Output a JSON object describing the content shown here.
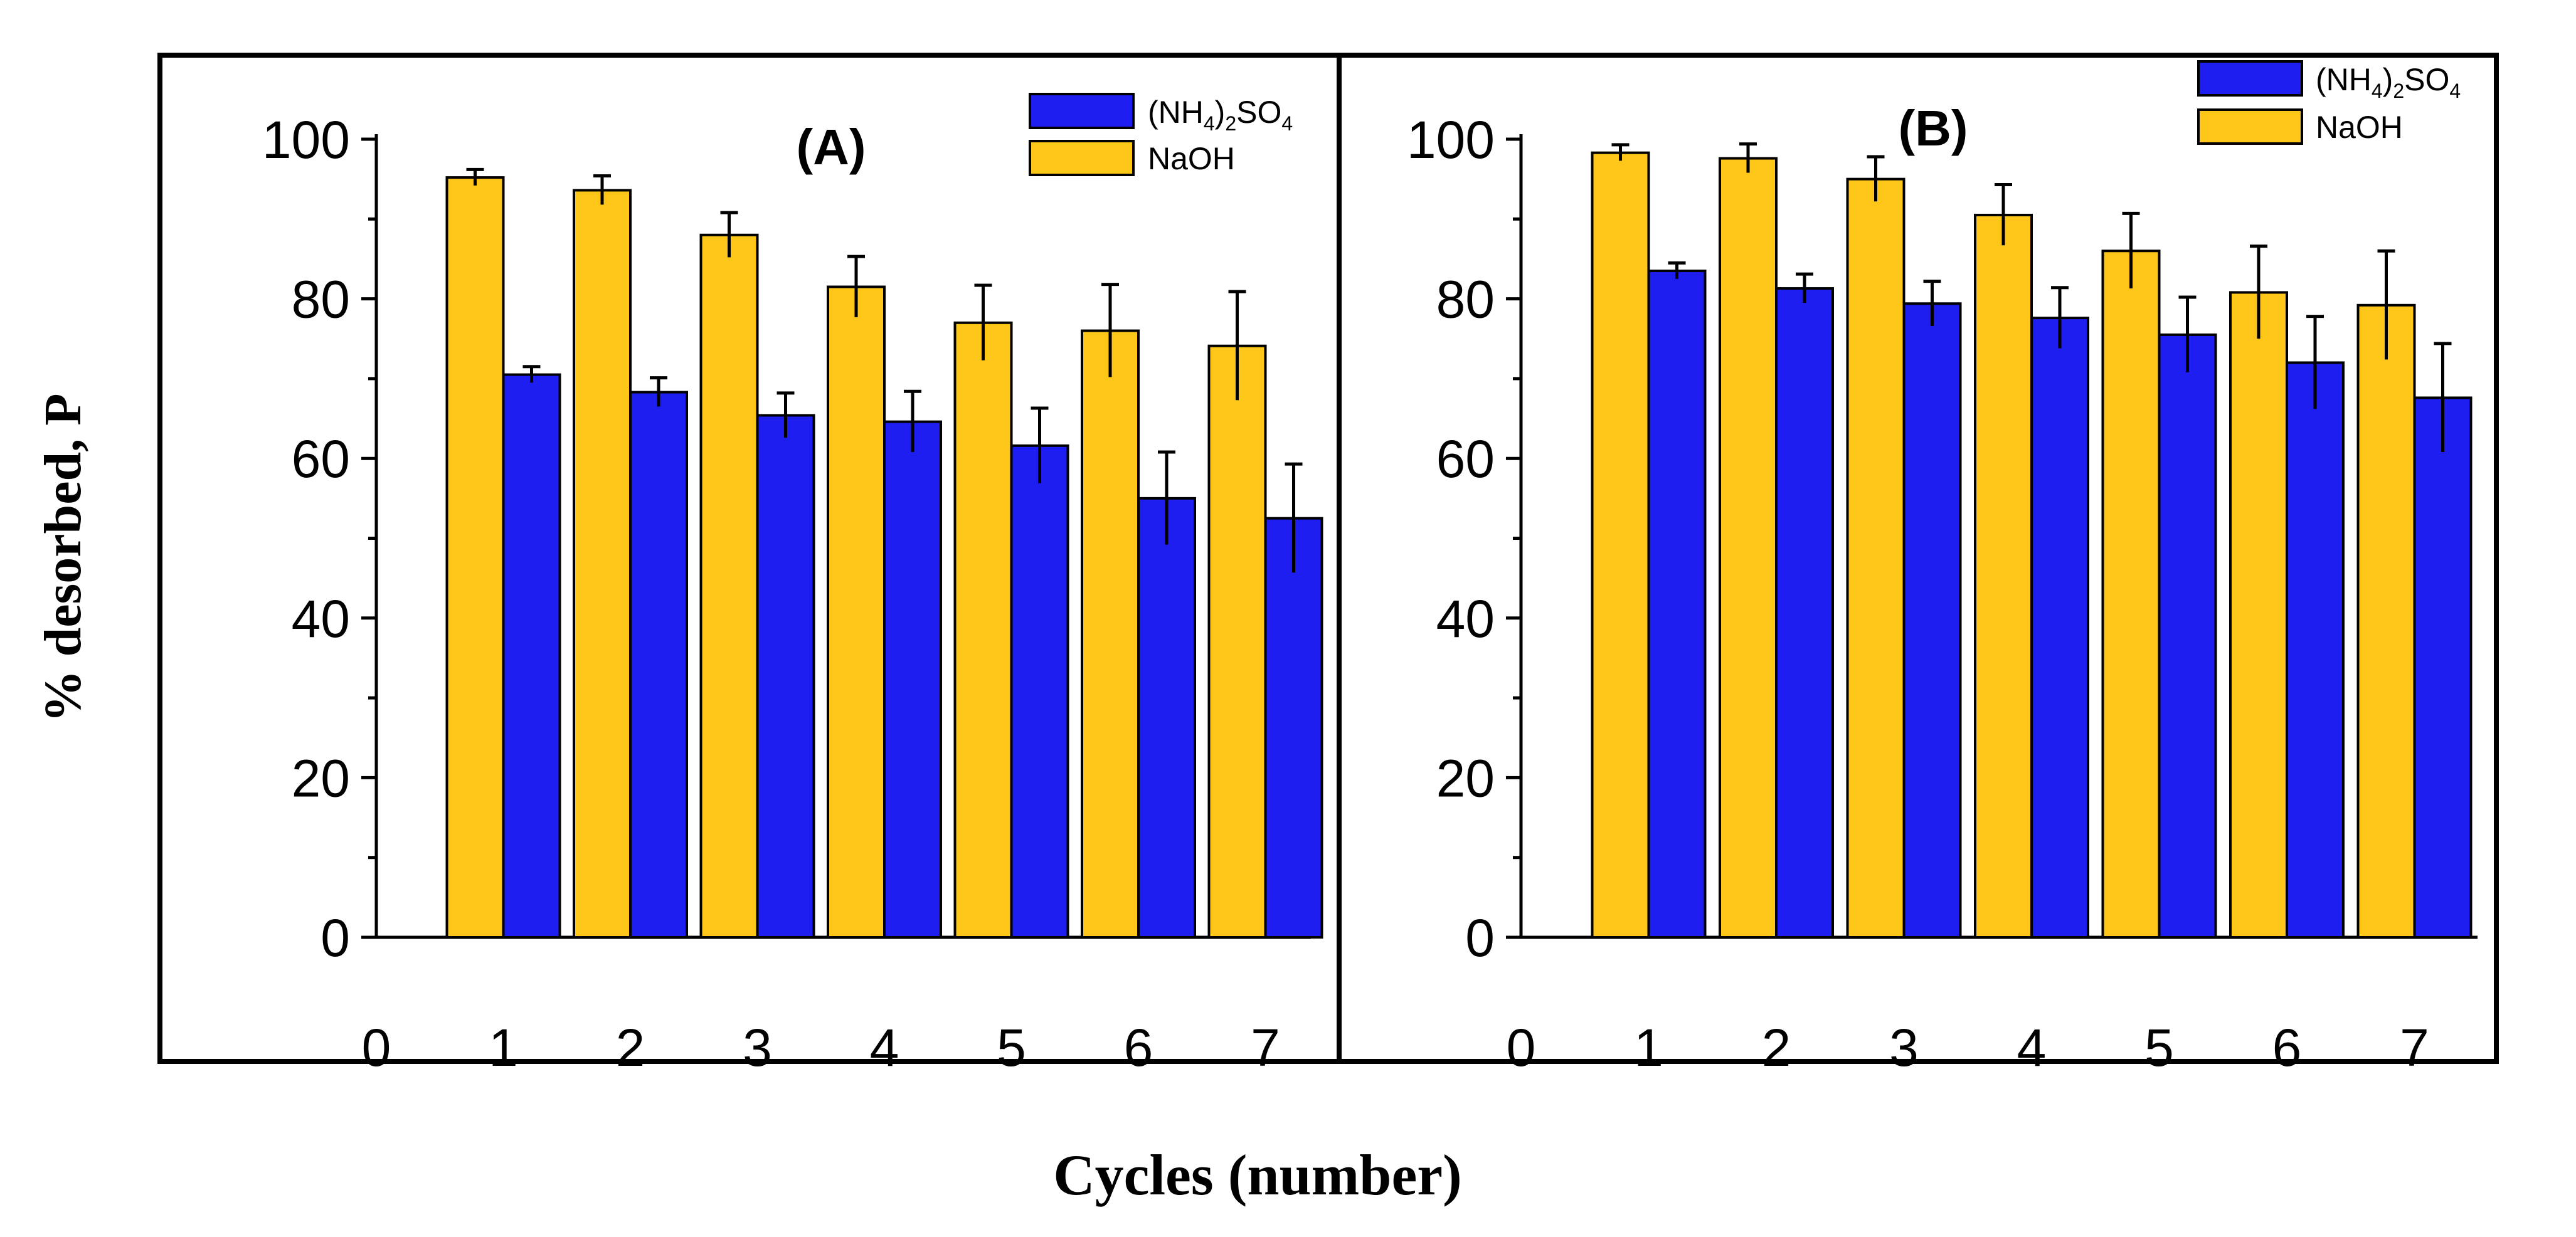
{
  "figure": {
    "ylabel": "% desorbed,  P",
    "xlabel": "Cycles (number)"
  },
  "colors": {
    "NaOH": "#FFC61A",
    "ammonium_sulfate": "#1E1EF0",
    "axis": "#000000"
  },
  "chart_data": [
    {
      "type": "bar",
      "panel": "(A)",
      "title": "(A)",
      "xlabel": "Cycles (number)",
      "ylabel": "% desorbed,  P",
      "categories": [
        1,
        2,
        3,
        4,
        5,
        6,
        7
      ],
      "xticks": [
        0,
        1,
        2,
        3,
        4,
        5,
        6,
        7
      ],
      "yticks": [
        0,
        20,
        40,
        60,
        80,
        100
      ],
      "xlim": [
        0,
        7.4
      ],
      "ylim": [
        0,
        100
      ],
      "legend_position": "top-right",
      "series": [
        {
          "name": "(NH4)2SO4",
          "legend": {
            "main": "(NH",
            "sub1": "4",
            "mid": ")",
            "sub2": "2",
            "mid2": "SO",
            "sub3": "4"
          },
          "color": "#1E1EF0",
          "values": [
            70.5,
            68.3,
            65.4,
            64.6,
            61.6,
            55.0,
            52.5
          ],
          "errors": [
            1.0,
            1.8,
            2.8,
            3.8,
            4.7,
            5.8,
            6.8
          ]
        },
        {
          "name": "NaOH",
          "legend_label": "NaOH",
          "color": "#FFC61A",
          "values": [
            95.2,
            93.6,
            88.0,
            81.5,
            77.0,
            76.0,
            74.1
          ],
          "errors": [
            1.0,
            1.8,
            2.8,
            3.8,
            4.7,
            5.8,
            6.8
          ]
        }
      ]
    },
    {
      "type": "bar",
      "panel": "(B)",
      "title": "(B)",
      "xlabel": "Cycles (number)",
      "ylabel": "% desorbed,  P",
      "categories": [
        1,
        2,
        3,
        4,
        5,
        6,
        7
      ],
      "xticks": [
        0,
        1,
        2,
        3,
        4,
        5,
        6,
        7
      ],
      "yticks": [
        0,
        20,
        40,
        60,
        80,
        100
      ],
      "xlim": [
        0,
        7.4
      ],
      "ylim": [
        0,
        100
      ],
      "legend_position": "top-right",
      "series": [
        {
          "name": "(NH4)2SO4",
          "legend": {
            "main": "(NH",
            "sub1": "4",
            "mid": ")",
            "sub2": "2",
            "mid2": "SO",
            "sub3": "4"
          },
          "color": "#1E1EF0",
          "values": [
            83.5,
            81.3,
            79.4,
            77.6,
            75.5,
            72.0,
            67.6
          ],
          "errors": [
            1.0,
            1.8,
            2.8,
            3.8,
            4.7,
            5.8,
            6.8
          ]
        },
        {
          "name": "NaOH",
          "legend_label": "NaOH",
          "color": "#FFC61A",
          "values": [
            98.3,
            97.6,
            95.0,
            90.5,
            86.0,
            80.8,
            79.2
          ],
          "errors": [
            1.0,
            1.8,
            2.8,
            3.8,
            4.7,
            5.8,
            6.8
          ]
        }
      ]
    }
  ]
}
